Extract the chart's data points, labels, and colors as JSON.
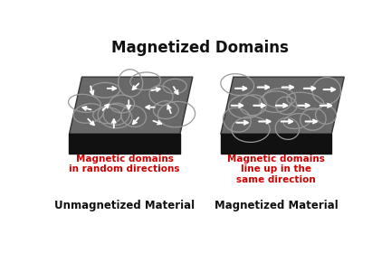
{
  "title": "Magnetized Domains",
  "title_fontsize": 12,
  "title_fontweight": "bold",
  "bg_color": "#ffffff",
  "box1_label_red": "Magnetic domains\nin random directions",
  "box1_label_black": "Unmagnetized Material",
  "box2_label_red": "Magnetic domains\nline up in the\nsame direction",
  "box2_label_black": "Magnetized Material",
  "label_red_color": "#cc0000",
  "label_black_color": "#111111",
  "slab_top_color": "#686868",
  "slab_side_color": "#111111",
  "domain_line_color": "#999999",
  "arrow_color": "#ffffff"
}
